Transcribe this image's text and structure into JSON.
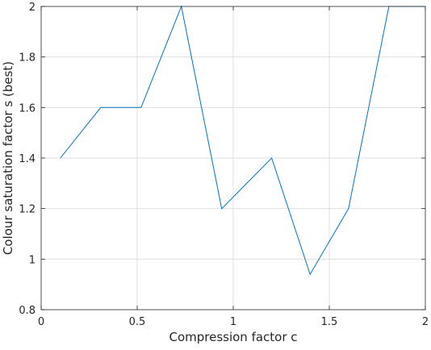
{
  "chart_data": {
    "type": "line",
    "xlabel": "Compression factor c",
    "ylabel": "Colour saturation factor s (best)",
    "xlim": [
      0,
      2
    ],
    "ylim": [
      0.8,
      2
    ],
    "xticks": [
      0,
      0.5,
      1,
      1.5,
      2
    ],
    "xtick_labels": [
      "0",
      "0.5",
      "1",
      "1.5",
      "2"
    ],
    "yticks": [
      0.8,
      1,
      1.2,
      1.4,
      1.6,
      1.8,
      2
    ],
    "ytick_labels": [
      "0.8",
      "1",
      "1.2",
      "1.4",
      "1.6",
      "1.8",
      "2"
    ],
    "grid": true,
    "series": [
      {
        "color": "#0072bd",
        "x": [
          0.1,
          0.31,
          0.52,
          0.73,
          0.94,
          1.2,
          1.4,
          1.6,
          1.81,
          2.0
        ],
        "y": [
          1.4,
          1.6,
          1.6,
          2.0,
          1.2,
          1.4,
          0.94,
          1.2,
          2.0,
          2.0
        ]
      }
    ]
  }
}
